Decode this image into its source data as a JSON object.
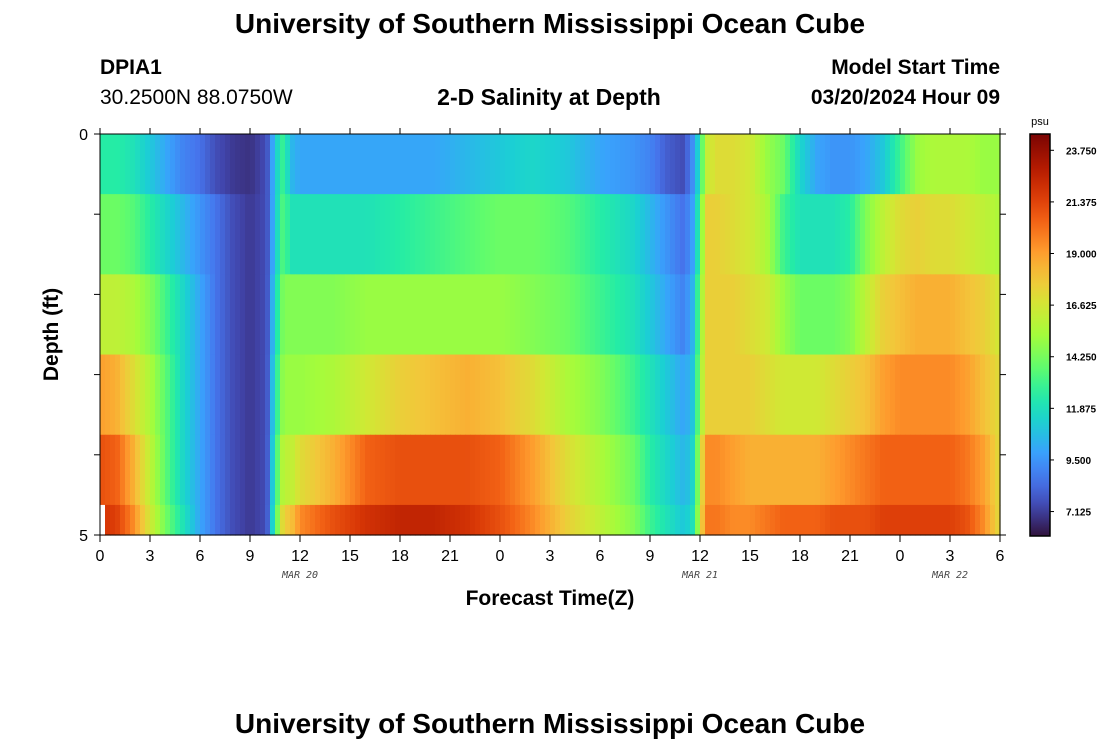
{
  "header": {
    "title": "University of Southern Mississippi Ocean Cube",
    "station": "DPIA1",
    "coords": "30.2500N  88.0750W",
    "subtitle": "2-D Salinity at Depth",
    "start_label": "Model Start Time",
    "start_value": "03/20/2024 Hour 09"
  },
  "footer": {
    "title": "University of Southern Mississippi Ocean Cube"
  },
  "chart_data": {
    "type": "heatmap",
    "title": "2-D Salinity at Depth",
    "xlabel": "Forecast Time(Z)",
    "ylabel": "Depth (ft)",
    "colorbar_unit": "psu",
    "colorbar_ticks": [
      "23.750",
      "21.375",
      "19.000",
      "16.625",
      "14.250",
      "11.875",
      "9.500",
      "7.125"
    ],
    "colormap": "turbo",
    "color_range": [
      6.0,
      24.5
    ],
    "x_ticks": [
      "0",
      "3",
      "6",
      "9",
      "12",
      "15",
      "18",
      "21",
      "0",
      "3",
      "6",
      "9",
      "12",
      "15",
      "18",
      "21",
      "0",
      "3",
      "6"
    ],
    "x_hours_range": [
      0,
      54
    ],
    "date_labels": [
      {
        "hour": 12,
        "label": "MAR 20"
      },
      {
        "hour": 36,
        "label": "MAR 21"
      },
      {
        "hour": 51,
        "label": "MAR 22"
      }
    ],
    "y_tick_labels": [
      "0",
      "5"
    ],
    "y_range": [
      0,
      5
    ],
    "depth_layers": [
      0.25,
      1.25,
      2.25,
      3.25,
      4.25,
      5.0
    ],
    "time_keyframes_hours": [
      0,
      1,
      2,
      3,
      4,
      5,
      6,
      7,
      8,
      9,
      10,
      10.5,
      11,
      11.5,
      12,
      14,
      16,
      18,
      20,
      22,
      24,
      26,
      28,
      30,
      32,
      33,
      34,
      35,
      35.5,
      36,
      36.3,
      37,
      38,
      39,
      40,
      41,
      42,
      43,
      44,
      45,
      46,
      47,
      48,
      49,
      50,
      51,
      52,
      53,
      54
    ],
    "salinity": [
      [
        12.5,
        12.5,
        12.0,
        11.0,
        10.0,
        9.0,
        8.5,
        7.5,
        7.0,
        6.8,
        7.5,
        11.0,
        13.0,
        10.5,
        10.0,
        10.0,
        10.0,
        10.0,
        10.0,
        10.5,
        11.0,
        11.5,
        11.0,
        10.0,
        9.5,
        9.0,
        8.0,
        7.5,
        9.0,
        12.0,
        16.0,
        17.0,
        17.0,
        16.5,
        15.0,
        14.0,
        11.5,
        10.0,
        9.5,
        9.5,
        10.0,
        11.0,
        13.0,
        15.0,
        15.5,
        15.5,
        15.5,
        15.0,
        15.0
      ],
      [
        14.0,
        14.0,
        13.5,
        12.5,
        11.5,
        10.5,
        9.5,
        8.5,
        7.5,
        7.0,
        7.5,
        11.0,
        13.5,
        12.0,
        12.0,
        12.0,
        12.0,
        12.5,
        13.0,
        13.5,
        14.0,
        14.0,
        13.5,
        12.5,
        11.5,
        10.5,
        9.5,
        8.5,
        9.5,
        13.0,
        17.5,
        17.5,
        17.0,
        16.5,
        15.5,
        13.0,
        12.0,
        12.0,
        12.0,
        12.5,
        14.5,
        16.0,
        17.0,
        17.5,
        17.0,
        17.0,
        16.5,
        16.0,
        15.5
      ],
      [
        16.0,
        16.0,
        15.5,
        14.5,
        13.0,
        11.5,
        10.0,
        8.5,
        7.5,
        7.0,
        7.5,
        11.5,
        14.5,
        14.5,
        14.5,
        14.5,
        15.0,
        15.0,
        15.0,
        15.0,
        15.0,
        14.5,
        14.0,
        13.0,
        12.0,
        11.0,
        10.0,
        9.0,
        10.0,
        14.0,
        17.5,
        17.5,
        17.5,
        17.0,
        16.5,
        15.0,
        14.0,
        14.0,
        14.0,
        14.5,
        16.0,
        17.5,
        18.0,
        18.5,
        18.5,
        18.5,
        18.0,
        17.5,
        16.5
      ],
      [
        19.0,
        18.5,
        17.0,
        15.5,
        13.5,
        11.5,
        10.0,
        8.5,
        7.5,
        7.0,
        7.5,
        12.0,
        15.0,
        15.0,
        15.0,
        15.5,
        16.5,
        17.5,
        18.0,
        18.5,
        18.0,
        17.0,
        15.5,
        14.5,
        13.0,
        12.0,
        11.0,
        10.0,
        10.5,
        14.5,
        17.5,
        17.5,
        17.5,
        17.5,
        17.0,
        16.5,
        16.5,
        16.5,
        17.0,
        17.5,
        18.0,
        19.0,
        19.5,
        19.5,
        19.5,
        19.5,
        19.0,
        18.0,
        17.0
      ],
      [
        21.0,
        20.5,
        18.5,
        16.0,
        13.5,
        11.5,
        10.0,
        8.5,
        7.5,
        7.0,
        7.5,
        12.5,
        16.0,
        16.0,
        17.0,
        18.5,
        20.5,
        21.0,
        21.0,
        21.0,
        20.5,
        19.0,
        17.0,
        15.5,
        14.0,
        12.5,
        11.5,
        10.5,
        11.0,
        15.5,
        19.5,
        19.5,
        19.0,
        18.5,
        18.5,
        18.5,
        18.5,
        18.5,
        19.0,
        19.5,
        20.0,
        20.5,
        20.5,
        20.5,
        20.5,
        20.5,
        20.0,
        19.0,
        17.0
      ],
      [
        22.0,
        21.5,
        19.5,
        16.5,
        14.0,
        12.0,
        10.0,
        8.5,
        7.5,
        7.0,
        7.5,
        13.0,
        17.5,
        18.0,
        19.5,
        21.0,
        22.0,
        22.5,
        22.5,
        22.0,
        21.0,
        19.5,
        17.5,
        16.0,
        14.5,
        13.0,
        12.0,
        11.0,
        11.5,
        16.0,
        20.0,
        20.0,
        19.5,
        19.5,
        20.0,
        20.5,
        20.5,
        20.5,
        21.0,
        21.0,
        21.0,
        21.5,
        21.5,
        21.5,
        21.5,
        21.5,
        21.0,
        19.5,
        17.0
      ]
    ]
  }
}
